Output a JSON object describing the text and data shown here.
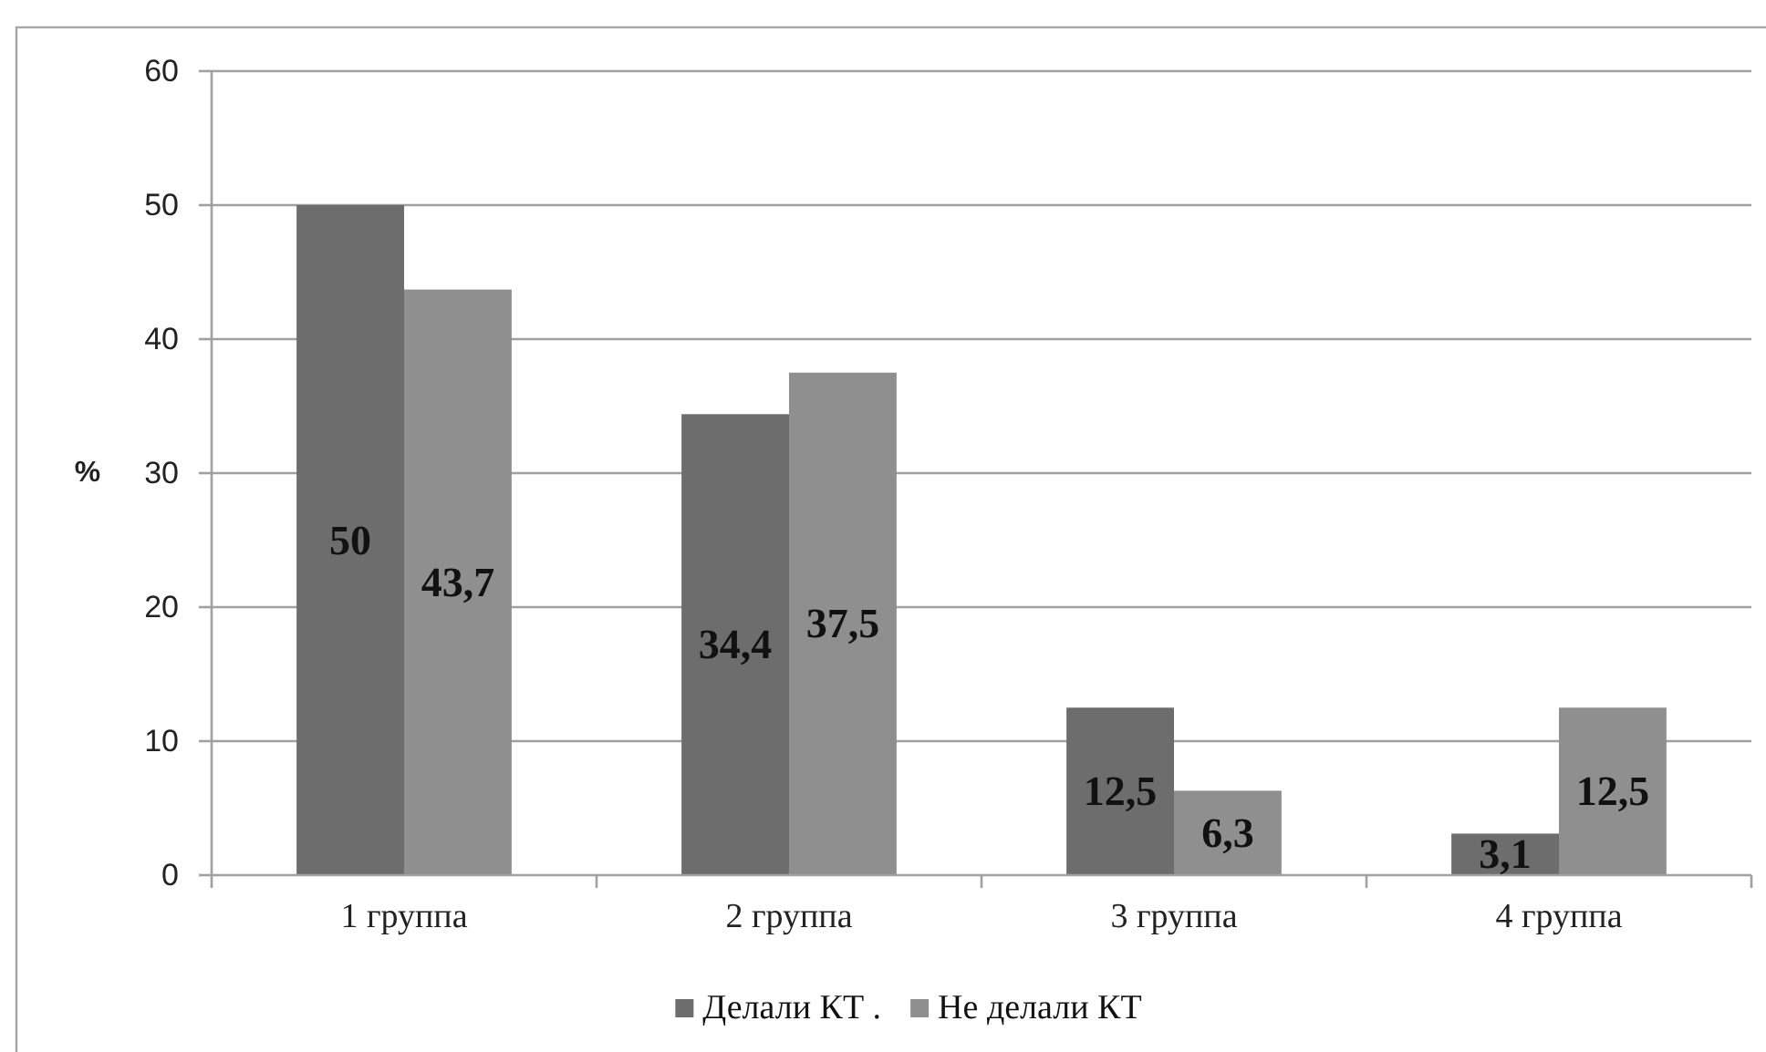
{
  "chart_data": {
    "type": "bar",
    "categories": [
      "1 группа",
      "2 группа",
      "3 группа",
      "4 группа"
    ],
    "ylabel": "%",
    "series": [
      {
        "name": "Делали КТ .",
        "color": "#6d6d6d",
        "values": [
          50,
          34.4,
          12.5,
          3.1
        ],
        "value_labels": [
          "50",
          "34,4",
          "12,5",
          "3,1"
        ]
      },
      {
        "name": "Не делали КТ",
        "color": "#8f8f8f",
        "values": [
          43.7,
          37.5,
          6.3,
          12.5
        ],
        "value_labels": [
          "43,7",
          "37,5",
          "6,3",
          "12,5"
        ]
      }
    ],
    "ylim": [
      0,
      60
    ],
    "yticks": [
      0,
      10,
      20,
      30,
      40,
      50,
      60
    ],
    "grid": "y",
    "legend": "bottom"
  }
}
